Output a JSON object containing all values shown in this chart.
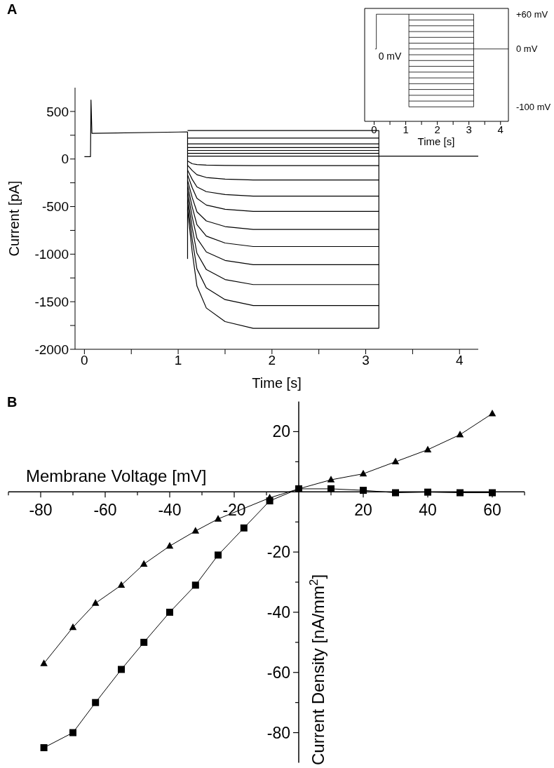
{
  "chart_data": [
    {
      "type": "line",
      "title": "A",
      "xlabel": "Time [s]",
      "ylabel": "Current [pA]",
      "xlim": [
        -0.1,
        4.2
      ],
      "ylim": [
        -2000,
        750
      ],
      "xticks": [
        0,
        {
          "value": 0.5,
          "label": null
        },
        1,
        {
          "value": 1.5,
          "label": null
        },
        2,
        {
          "value": 2.5,
          "label": null
        },
        3,
        {
          "value": 3.5,
          "label": null
        },
        4
      ],
      "yticks": [
        -2000,
        {
          "value": -1750,
          "label": null
        },
        -1500,
        {
          "value": -1250,
          "label": null
        },
        -1000,
        {
          "value": -750,
          "label": null
        },
        -500,
        {
          "value": -250,
          "label": null
        },
        0,
        {
          "value": 250,
          "label": null
        },
        500
      ],
      "series": [
        {
          "color": "#000000",
          "x": [
            0,
            0.065,
            0.07,
            0.08,
            1.1
          ],
          "values": [
            25,
            25,
            620,
            270,
            285
          ]
        },
        {
          "color": "#000000",
          "x": [
            1.1,
            1.1
          ],
          "values": [
            285,
            -1050
          ]
        },
        {
          "color": "#000000",
          "x": [
            3.14,
            3.14
          ],
          "values": [
            300,
            -1780
          ]
        },
        {
          "color": "#000000",
          "x": [
            1.1,
            3.14
          ],
          "values": [
            300,
            300
          ]
        },
        {
          "color": "#000000",
          "x": [
            1.1,
            3.14
          ],
          "values": [
            220,
            220
          ]
        },
        {
          "color": "#000000",
          "x": [
            1.1,
            3.14
          ],
          "values": [
            160,
            160
          ]
        },
        {
          "color": "#000000",
          "x": [
            1.1,
            3.14
          ],
          "values": [
            120,
            120
          ]
        },
        {
          "color": "#000000",
          "x": [
            1.1,
            3.14
          ],
          "values": [
            90,
            90
          ]
        },
        {
          "color": "#000000",
          "x": [
            1.1,
            3.14
          ],
          "values": [
            60,
            60
          ]
        },
        {
          "color": "#000000",
          "x": [
            1.1,
            3.14,
            4.2
          ],
          "values": [
            30,
            30,
            30
          ]
        },
        {
          "color": "#000000",
          "x": [
            1.1,
            1.15,
            1.2,
            1.3,
            1.5,
            1.8,
            3.14
          ],
          "values": [
            -20,
            -50,
            -58,
            -64,
            -68,
            -70,
            -70
          ]
        },
        {
          "color": "#000000",
          "x": [
            1.1,
            1.15,
            1.2,
            1.3,
            1.5,
            1.8,
            3.14
          ],
          "values": [
            -66,
            -121,
            -165,
            -194,
            -211,
            -220,
            -220
          ]
        },
        {
          "color": "#000000",
          "x": [
            1.1,
            1.15,
            1.2,
            1.3,
            1.5,
            1.8,
            3.14
          ],
          "values": [
            -117,
            -215,
            -293,
            -343,
            -374,
            -390,
            -390
          ]
        },
        {
          "color": "#000000",
          "x": [
            1.1,
            1.15,
            1.2,
            1.3,
            1.5,
            1.8,
            3.14
          ],
          "values": [
            -165,
            -303,
            -413,
            -484,
            -528,
            -550,
            -550
          ]
        },
        {
          "color": "#000000",
          "x": [
            1.1,
            1.15,
            1.2,
            1.3,
            1.5,
            1.8,
            3.14
          ],
          "values": [
            -222,
            -407,
            -555,
            -651,
            -710,
            -740,
            -740
          ]
        },
        {
          "color": "#000000",
          "x": [
            1.1,
            1.15,
            1.2,
            1.3,
            1.5,
            1.8,
            3.14
          ],
          "values": [
            -276,
            -506,
            -690,
            -810,
            -883,
            -920,
            -920
          ]
        },
        {
          "color": "#000000",
          "x": [
            1.1,
            1.15,
            1.2,
            1.3,
            1.5,
            1.8,
            3.14
          ],
          "values": [
            -333,
            -611,
            -833,
            -977,
            -1066,
            -1110,
            -1110
          ]
        },
        {
          "color": "#000000",
          "x": [
            1.1,
            1.15,
            1.2,
            1.3,
            1.5,
            1.8,
            3.14
          ],
          "values": [
            -396,
            -726,
            -990,
            -1162,
            -1267,
            -1320,
            -1320
          ]
        },
        {
          "color": "#000000",
          "x": [
            1.1,
            1.15,
            1.2,
            1.3,
            1.5,
            1.8,
            3.14
          ],
          "values": [
            -462,
            -847,
            -1155,
            -1355,
            -1478,
            -1540,
            -1540
          ]
        },
        {
          "color": "#000000",
          "x": [
            1.1,
            1.15,
            1.2,
            1.3,
            1.5,
            1.8,
            3.14
          ],
          "values": [
            -534,
            -979,
            -1335,
            -1566,
            -1709,
            -1780,
            -1780
          ]
        }
      ]
    },
    {
      "type": "line",
      "xlabel": "Time [s]",
      "xlim": [
        -0.3,
        4.25
      ],
      "ylim": [
        -125,
        70
      ],
      "xticks": [
        0,
        {
          "value": 0.5,
          "label": null
        },
        1,
        {
          "value": 1.5,
          "label": null
        },
        2,
        {
          "value": 2.5,
          "label": null
        },
        3,
        {
          "value": 3.5,
          "label": null
        },
        4
      ],
      "yticks": [
        {
          "value": 60,
          "label": "+60 mV"
        },
        {
          "value": 0,
          "label": "0 mV"
        },
        {
          "value": -100,
          "label": "-100 mV"
        }
      ],
      "annotations": [
        {
          "text": "0 mV",
          "x": 0.07,
          "y": 0
        }
      ],
      "series": [
        {
          "color": "#000000",
          "x": [
            0.03,
            0.07,
            0.07,
            3.15
          ],
          "values": [
            0,
            0,
            60,
            60
          ]
        },
        {
          "color": "#000000",
          "x": [
            1.1,
            1.1,
            3.15,
            3.15
          ],
          "values": [
            60,
            -100,
            -100,
            60
          ]
        },
        {
          "color": "#000000",
          "x": [
            1.1,
            3.15
          ],
          "values": [
            50,
            50
          ]
        },
        {
          "color": "#000000",
          "x": [
            1.1,
            3.15
          ],
          "values": [
            40,
            40
          ]
        },
        {
          "color": "#000000",
          "x": [
            1.1,
            3.15
          ],
          "values": [
            30,
            30
          ]
        },
        {
          "color": "#000000",
          "x": [
            1.1,
            3.15
          ],
          "values": [
            20,
            20
          ]
        },
        {
          "color": "#000000",
          "x": [
            1.1,
            3.15
          ],
          "values": [
            10,
            10
          ]
        },
        {
          "color": "#000000",
          "x": [
            1.1,
            3.15,
            4.25
          ],
          "values": [
            0,
            0,
            0
          ]
        },
        {
          "color": "#000000",
          "x": [
            1.1,
            3.15
          ],
          "values": [
            -10,
            -10
          ]
        },
        {
          "color": "#000000",
          "x": [
            1.1,
            3.15
          ],
          "values": [
            -20,
            -20
          ]
        },
        {
          "color": "#000000",
          "x": [
            1.1,
            3.15
          ],
          "values": [
            -30,
            -30
          ]
        },
        {
          "color": "#000000",
          "x": [
            1.1,
            3.15
          ],
          "values": [
            -40,
            -40
          ]
        },
        {
          "color": "#000000",
          "x": [
            1.1,
            3.15
          ],
          "values": [
            -50,
            -50
          ]
        },
        {
          "color": "#000000",
          "x": [
            1.1,
            3.15
          ],
          "values": [
            -60,
            -60
          ]
        },
        {
          "color": "#000000",
          "x": [
            1.1,
            3.15
          ],
          "values": [
            -70,
            -70
          ]
        },
        {
          "color": "#000000",
          "x": [
            1.1,
            3.15
          ],
          "values": [
            -80,
            -80
          ]
        },
        {
          "color": "#000000",
          "x": [
            1.1,
            3.15
          ],
          "values": [
            -90,
            -90
          ]
        }
      ]
    },
    {
      "type": "line",
      "title": "B",
      "xlabel": "Membrane Voltage [mV]",
      "ylabel": "Current Density [nA/mm$^{2}$]",
      "xlim": [
        -90,
        70
      ],
      "ylim": [
        -90,
        30
      ],
      "xticks": [
        {
          "value": -90,
          "label": null
        },
        -80,
        {
          "value": -70,
          "label": null
        },
        -60,
        {
          "value": -50,
          "label": null
        },
        -40,
        {
          "value": -30,
          "label": null
        },
        -20,
        {
          "value": -10,
          "label": null
        },
        20,
        {
          "value": 10,
          "label": null
        },
        {
          "value": 30,
          "label": null
        },
        40,
        {
          "value": 50,
          "label": null
        },
        60,
        {
          "value": 70,
          "label": null
        }
      ],
      "yticks": [
        -80,
        {
          "value": -70,
          "label": null
        },
        -60,
        {
          "value": -50,
          "label": null
        },
        -40,
        {
          "value": -30,
          "label": null
        },
        -20,
        {
          "value": -10,
          "label": null
        },
        {
          "value": 10,
          "label": null
        },
        20
      ],
      "series": [
        {
          "color": "#000000",
          "marker": "triangle",
          "x": [
            -79,
            -70,
            -63,
            -55,
            -48,
            -40,
            -32,
            -25,
            -9,
            0,
            10,
            20,
            30,
            40,
            50,
            60
          ],
          "values": [
            -57,
            -45,
            -37,
            -31,
            -24,
            -18,
            -13,
            -9,
            -2,
            1,
            4,
            6,
            10,
            14,
            19,
            26
          ]
        },
        {
          "color": "#000000",
          "marker": "square",
          "x": [
            -79,
            -70,
            -63,
            -55,
            -48,
            -40,
            -32,
            -25,
            -17,
            -9,
            0,
            10,
            20,
            30,
            40,
            50,
            60
          ],
          "values": [
            -85,
            -80,
            -70,
            -59,
            -50,
            -40,
            -31,
            -21,
            -12,
            -3,
            1,
            1,
            0.5,
            -0.3,
            -0.1,
            -0.3,
            -0.3
          ]
        }
      ]
    }
  ]
}
